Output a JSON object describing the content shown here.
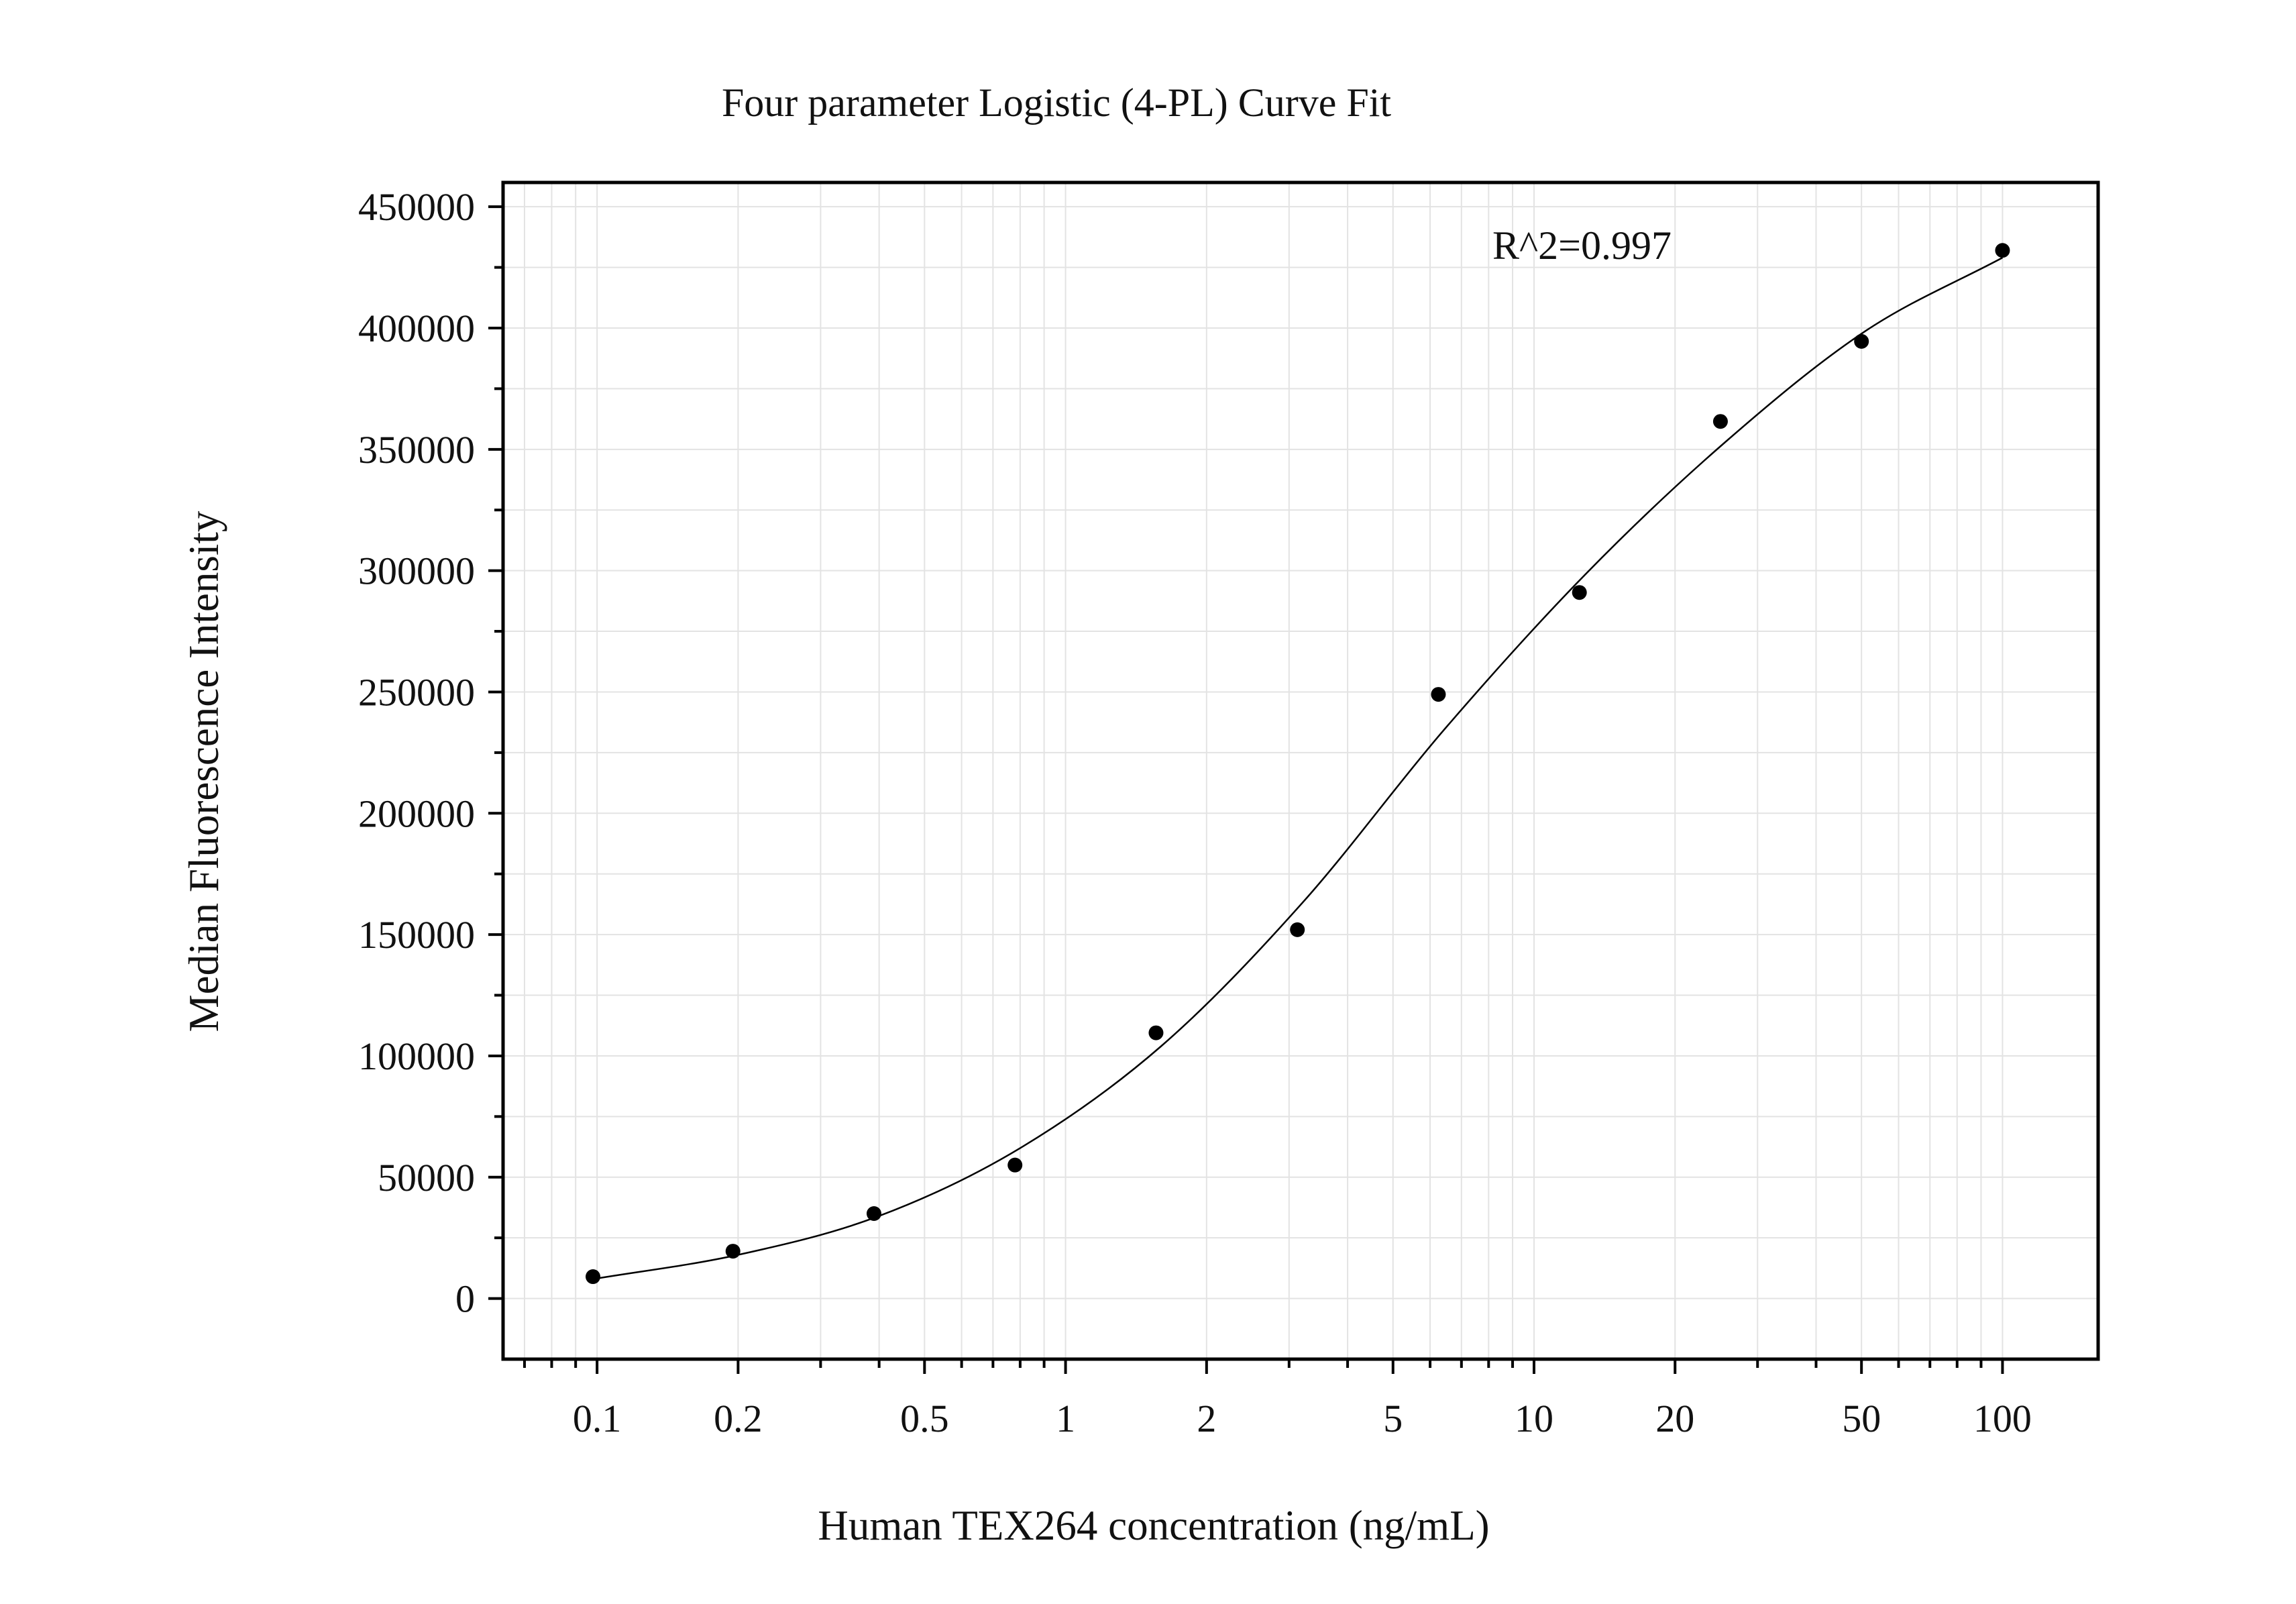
{
  "chart_data": {
    "type": "scatter",
    "title": "Four parameter Logistic (4-PL) Curve Fit",
    "xlabel": "Human TEX264 concentration (ng/mL)",
    "ylabel": "Median Fluorescence Intensity",
    "annotation": "R^2=0.997",
    "x_scale": "log",
    "xlim": [
      0.063,
      160
    ],
    "ylim": [
      -25000,
      460000
    ],
    "x_ticks": [
      0.1,
      0.2,
      0.5,
      1,
      2,
      5,
      10,
      20,
      50,
      100
    ],
    "x_tick_labels": [
      "0.1",
      "0.2",
      "0.5",
      "1",
      "2",
      "5",
      "10",
      "20",
      "50",
      "100"
    ],
    "y_ticks": [
      0,
      50000,
      100000,
      150000,
      200000,
      250000,
      300000,
      350000,
      400000,
      450000
    ],
    "y_tick_labels": [
      "0",
      "50000",
      "100000",
      "150000",
      "200000",
      "250000",
      "300000",
      "350000",
      "400000",
      "450000"
    ],
    "grid": true,
    "legend": "none",
    "series": [
      {
        "kind": "points",
        "x": [
          0.098,
          0.195,
          0.39,
          0.78,
          1.56,
          3.125,
          6.25,
          12.5,
          25,
          50,
          100
        ],
        "y": [
          9000,
          19500,
          35000,
          55000,
          109500,
          152000,
          249000,
          291000,
          361500,
          394500,
          432000
        ]
      },
      {
        "kind": "curve",
        "x": [
          0.098,
          0.2,
          0.4,
          0.8,
          1.6,
          3.2,
          6.4,
          12.8,
          25.6,
          51.2,
          100
        ],
        "y": [
          8000,
          18000,
          34000,
          62000,
          104000,
          163000,
          234000,
          298000,
          353000,
          399000,
          429000
        ]
      }
    ],
    "colors": {
      "points": "#000000",
      "curve": "#000000",
      "grid": "#e3e3e3",
      "axis": "#000000"
    }
  }
}
